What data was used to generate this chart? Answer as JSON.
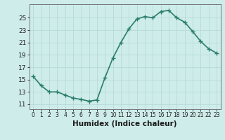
{
  "x": [
    0,
    1,
    2,
    3,
    4,
    5,
    6,
    7,
    8,
    9,
    10,
    11,
    12,
    13,
    14,
    15,
    16,
    17,
    18,
    19,
    20,
    21,
    22,
    23
  ],
  "y": [
    15.5,
    14.0,
    13.0,
    13.0,
    12.5,
    12.0,
    11.8,
    11.5,
    11.7,
    15.3,
    18.5,
    21.0,
    23.2,
    24.8,
    25.2,
    25.0,
    26.0,
    26.2,
    25.0,
    24.3,
    22.8,
    21.2,
    20.0,
    19.3
  ],
  "line_color": "#2a7d6e",
  "marker": "+",
  "marker_size": 4,
  "linewidth": 1.2,
  "bg_color": "#ceecea",
  "grid_color": "#b8dbd8",
  "tick_color": "#222222",
  "xlabel": "Humidex (Indice chaleur)",
  "xlabel_fontsize": 7.5,
  "ylabel_ticks": [
    11,
    13,
    15,
    17,
    19,
    21,
    23,
    25
  ],
  "xlim": [
    -0.5,
    23.5
  ],
  "ylim": [
    10.2,
    27.2
  ],
  "xticks": [
    0,
    1,
    2,
    3,
    4,
    5,
    6,
    7,
    8,
    9,
    10,
    11,
    12,
    13,
    14,
    15,
    16,
    17,
    18,
    19,
    20,
    21,
    22,
    23
  ],
  "xtick_labels": [
    "0",
    "1",
    "2",
    "3",
    "4",
    "5",
    "6",
    "7",
    "8",
    "9",
    "10",
    "11",
    "12",
    "13",
    "14",
    "15",
    "16",
    "17",
    "18",
    "19",
    "20",
    "21",
    "22",
    "23"
  ]
}
